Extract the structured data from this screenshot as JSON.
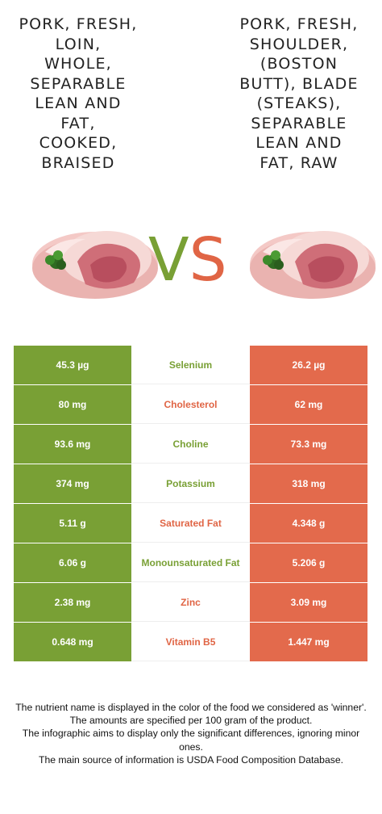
{
  "left_food": {
    "title": "Pork, fresh,\nloin,\nwhole,\nseparable\nlean and\nfat,\ncooked,\nbraised",
    "image_icon": "pork-chop-image",
    "color": "#79a035"
  },
  "right_food": {
    "title": "Pork, fresh,\nshoulder,\n(Boston\nbutt), blade\n(steaks),\nseparable\nlean and\nfat, raw",
    "image_icon": "pork-chop-image",
    "color": "#e36a4c"
  },
  "vs": {
    "v": "V",
    "s": "S"
  },
  "rows": [
    {
      "left": "45.3 µg",
      "name": "Selenium",
      "right": "26.2 µg",
      "winner": "left"
    },
    {
      "left": "80 mg",
      "name": "Cholesterol",
      "right": "62 mg",
      "winner": "right"
    },
    {
      "left": "93.6 mg",
      "name": "Choline",
      "right": "73.3 mg",
      "winner": "left"
    },
    {
      "left": "374 mg",
      "name": "Potassium",
      "right": "318 mg",
      "winner": "left"
    },
    {
      "left": "5.11 g",
      "name": "Saturated Fat",
      "right": "4.348 g",
      "winner": "right"
    },
    {
      "left": "6.06 g",
      "name": "Monounsaturated Fat",
      "right": "5.206 g",
      "winner": "left"
    },
    {
      "left": "2.38 mg",
      "name": "Zinc",
      "right": "3.09 mg",
      "winner": "right"
    },
    {
      "left": "0.648 mg",
      "name": "Vitamin B5",
      "right": "1.447 mg",
      "winner": "right"
    }
  ],
  "footer": [
    "The nutrient name is displayed in the color of the food we considered as 'winner'.",
    "The amounts are specified per 100 gram of the product.",
    "The infographic aims to display only the significant differences, ignoring minor ones.",
    "The main source of information is USDA Food Composition Database."
  ]
}
